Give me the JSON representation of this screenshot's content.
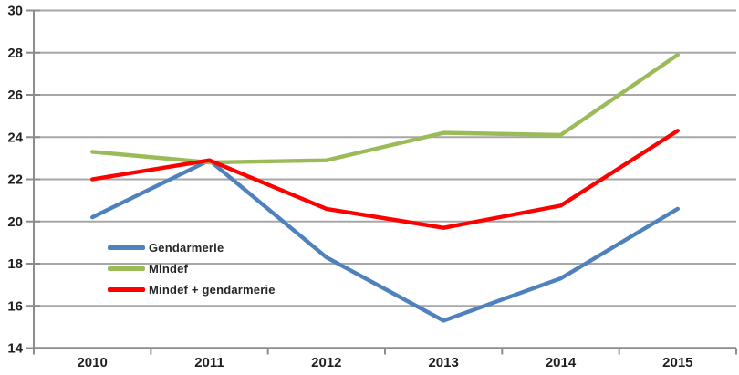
{
  "chart_data": {
    "type": "line",
    "categories": [
      "2010",
      "2011",
      "2012",
      "2013",
      "2014",
      "2015"
    ],
    "series": [
      {
        "name": "Gendarmerie",
        "color": "#4F81BD",
        "values": [
          20.2,
          22.9,
          18.3,
          15.3,
          17.3,
          20.6
        ]
      },
      {
        "name": "Mindef",
        "color": "#9BBB59",
        "values": [
          23.3,
          22.8,
          22.9,
          24.2,
          24.1,
          27.9
        ]
      },
      {
        "name": "Mindef + gendarmerie",
        "color": "#FF0000",
        "values": [
          22.0,
          22.9,
          20.6,
          19.7,
          20.75,
          24.3
        ]
      }
    ],
    "title": "",
    "xlabel": "",
    "ylabel": "",
    "ylim": [
      14,
      30
    ],
    "ytick_step": 2,
    "yticks": [
      "14",
      "16",
      "18",
      "20",
      "22",
      "24",
      "26",
      "28",
      "30"
    ],
    "grid": true,
    "legend_position": "inside-left-middle"
  },
  "style": {
    "grid_color": "#A7A7A7",
    "axis_color": "#8C8C8C",
    "tick_label_color": "#1F1F1F",
    "line_width": 4.4
  }
}
